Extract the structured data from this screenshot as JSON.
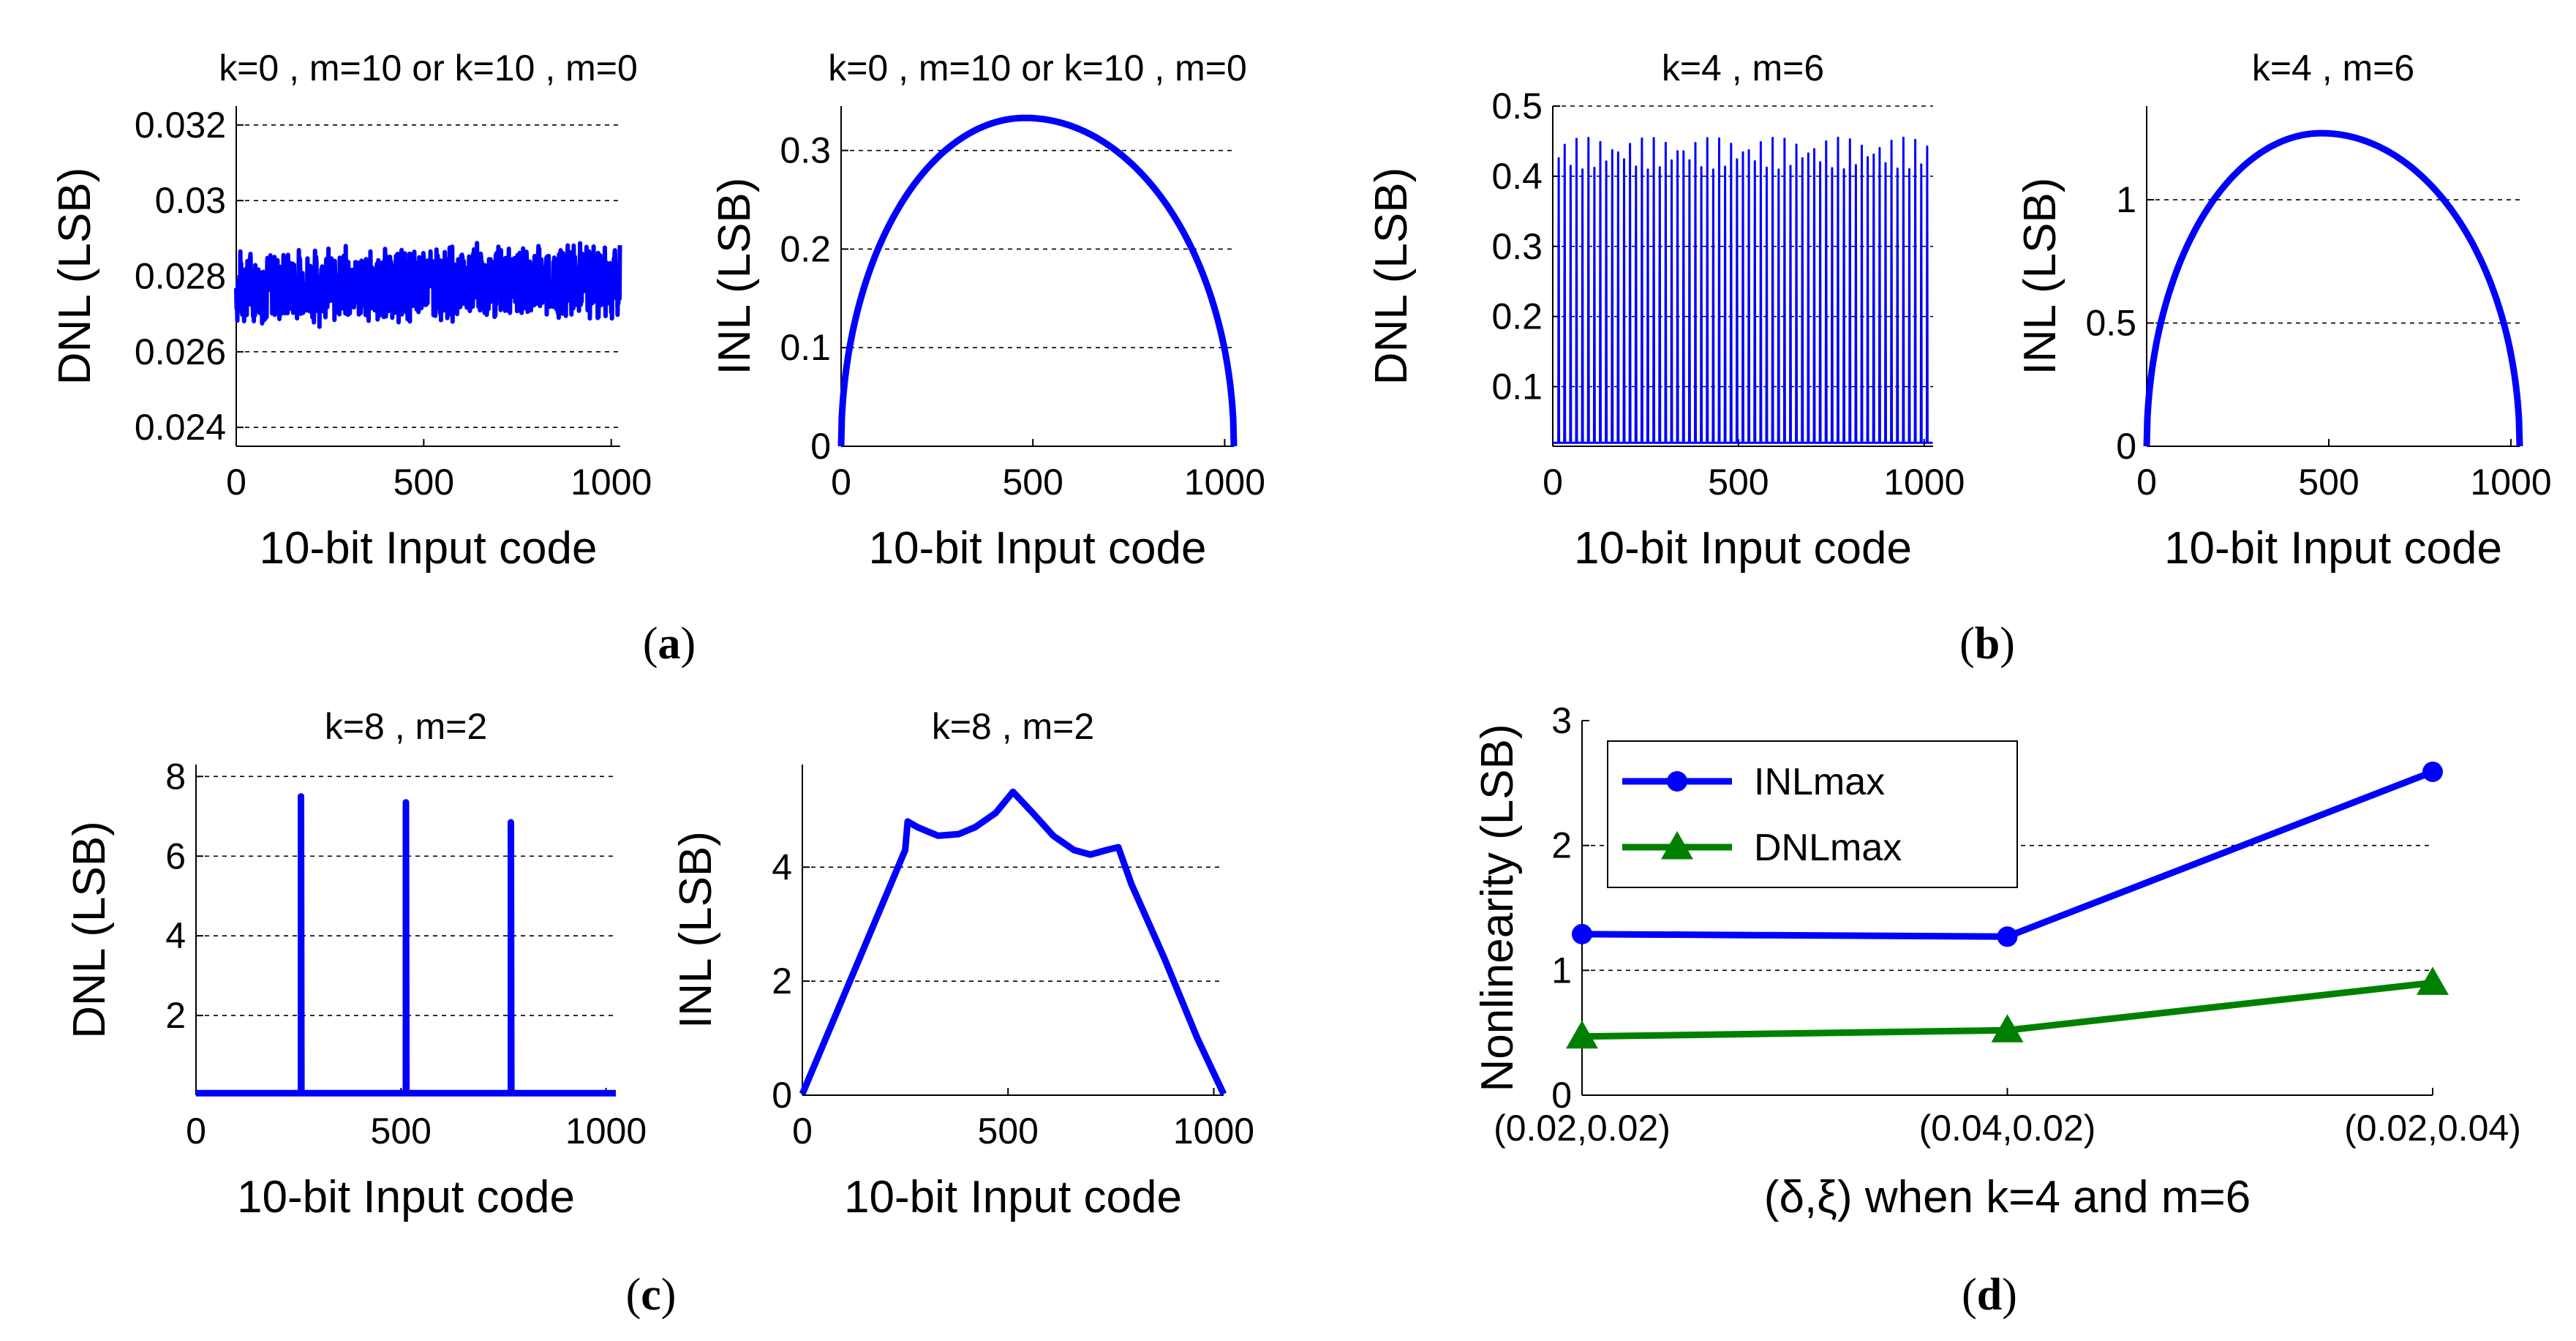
{
  "colors": {
    "blue": "#0000FF",
    "green": "#008000",
    "axis": "#000000",
    "grid": "#000000"
  },
  "panel_labels": [
    "(a)",
    "(b)",
    "(c)",
    "(d)"
  ],
  "chart_data": [
    {
      "id": "a-dnl",
      "type": "line",
      "title": "k=0 , m=10 or k=10 , m=0",
      "xlabel": "10-bit Input code",
      "ylabel": "DNL (LSB)",
      "xlim": [
        0,
        1024
      ],
      "ylim": [
        0.0235,
        0.0325
      ],
      "xticks": [
        0,
        500,
        1000
      ],
      "yticks": [
        0.024,
        0.026,
        0.028,
        0.03,
        0.032
      ],
      "ytick_labels": [
        "0.024",
        "0.026",
        "0.028",
        "0.03",
        "0.032"
      ],
      "grid_y": [
        0.024,
        0.026,
        0.028,
        0.03,
        0.032
      ],
      "series": [
        {
          "name": "DNL",
          "color": "#0000FF",
          "kind": "noise",
          "mean": 0.0277,
          "amplitude": 0.0011,
          "trend": 0.0002,
          "points": 1024
        }
      ]
    },
    {
      "id": "a-inl",
      "type": "line",
      "title": "k=0 , m=10 or k=10 , m=0",
      "xlabel": "10-bit Input code",
      "ylabel": "INL (LSB)",
      "xlim": [
        0,
        1024
      ],
      "ylim": [
        0,
        0.345
      ],
      "xticks": [
        0,
        500,
        1000
      ],
      "yticks": [
        0,
        0.1,
        0.2,
        0.3
      ],
      "ytick_labels": [
        "0",
        "0.1",
        "0.2",
        "0.3"
      ],
      "grid_y": [
        0.1,
        0.2,
        0.3
      ],
      "series": [
        {
          "name": "INL",
          "color": "#0000FF",
          "kind": "arc",
          "peak": 0.333,
          "peak_x": 480,
          "points": 1024
        }
      ]
    },
    {
      "id": "b-dnl",
      "type": "line",
      "title": "k=4 , m=6",
      "xlabel": "10-bit Input code",
      "ylabel": "DNL (LSB)",
      "xlim": [
        0,
        1024
      ],
      "ylim": [
        0.015,
        0.5
      ],
      "xticks": [
        0,
        500,
        1000
      ],
      "yticks": [
        0.1,
        0.2,
        0.3,
        0.4,
        0.5
      ],
      "ytick_labels": [
        "0.1",
        "0.2",
        "0.3",
        "0.4",
        "0.5"
      ],
      "grid_y": [
        0.1,
        0.2,
        0.3,
        0.4,
        0.5
      ],
      "series": [
        {
          "name": "DNL",
          "color": "#0000FF",
          "kind": "spikes",
          "period": 16,
          "base": 0.02,
          "peak": 0.455,
          "points": 1024
        }
      ]
    },
    {
      "id": "b-inl",
      "type": "line",
      "title": "k=4 , m=6",
      "xlabel": "10-bit Input code",
      "ylabel": "INL (LSB)",
      "xlim": [
        0,
        1024
      ],
      "ylim": [
        0,
        1.38
      ],
      "xticks": [
        0,
        500,
        1000
      ],
      "yticks": [
        0,
        0.5,
        1
      ],
      "ytick_labels": [
        "0",
        "0.5",
        "1"
      ],
      "grid_y": [
        0.5,
        1
      ],
      "series": [
        {
          "name": "INL",
          "color": "#0000FF",
          "kind": "arc",
          "peak": 1.27,
          "peak_x": 480,
          "points": 1024
        }
      ]
    },
    {
      "id": "c-dnl",
      "type": "line",
      "title": "k=8 , m=2",
      "xlabel": "10-bit Input code",
      "ylabel": "DNL (LSB)",
      "xlim": [
        0,
        1024
      ],
      "ylim": [
        0,
        8.3
      ],
      "xticks": [
        0,
        500,
        1000
      ],
      "yticks": [
        2,
        4,
        6,
        8
      ],
      "ytick_labels": [
        "2",
        "4",
        "6",
        "8"
      ],
      "grid_y": [
        2,
        4,
        6,
        8
      ],
      "series": [
        {
          "name": "DNL",
          "color": "#0000FF",
          "kind": "impulses",
          "base": 0.05,
          "impulses": [
            [
              256,
              7.5
            ],
            [
              512,
              7.35
            ],
            [
              768,
              6.85
            ]
          ]
        }
      ]
    },
    {
      "id": "c-inl",
      "type": "line",
      "title": "k=8 , m=2",
      "xlabel": "10-bit Input code",
      "ylabel": "INL (LSB)",
      "xlim": [
        0,
        1024
      ],
      "ylim": [
        0,
        5.8
      ],
      "xticks": [
        0,
        500,
        1000
      ],
      "yticks": [
        0,
        2,
        4
      ],
      "ytick_labels": [
        "0",
        "2",
        "4"
      ],
      "grid_y": [
        2,
        4
      ],
      "series": [
        {
          "name": "INL",
          "color": "#0000FF",
          "kind": "polyline",
          "x": [
            0,
            250,
            256,
            280,
            330,
            380,
            420,
            470,
            512,
            560,
            610,
            660,
            700,
            740,
            768,
            800,
            880,
            960,
            1024
          ],
          "y": [
            0.02,
            4.3,
            4.8,
            4.7,
            4.55,
            4.58,
            4.7,
            4.95,
            5.32,
            4.95,
            4.55,
            4.3,
            4.22,
            4.3,
            4.35,
            3.7,
            2.4,
            1.0,
            0.02
          ]
        }
      ]
    },
    {
      "id": "d",
      "type": "line",
      "title": "",
      "xlabel": "(δ,ξ) when k=4 and m=6",
      "ylabel": "Nonlinearity (LSB)",
      "categories": [
        "(0.02,0.02)",
        "(0.04,0.02)",
        "(0.02,0.04)"
      ],
      "ylim": [
        0,
        3
      ],
      "yticks": [
        0,
        1,
        2,
        3
      ],
      "ytick_labels": [
        "0",
        "1",
        "2",
        "3"
      ],
      "grid_y": [
        1,
        2
      ],
      "legend": {
        "placement": "top-left"
      },
      "series": [
        {
          "name": "INLmax",
          "color": "#0000FF",
          "marker": "circle",
          "values": [
            1.29,
            1.27,
            2.59
          ]
        },
        {
          "name": "DNLmax",
          "color": "#008000",
          "marker": "triangle",
          "values": [
            0.47,
            0.52,
            0.9
          ]
        }
      ]
    }
  ]
}
